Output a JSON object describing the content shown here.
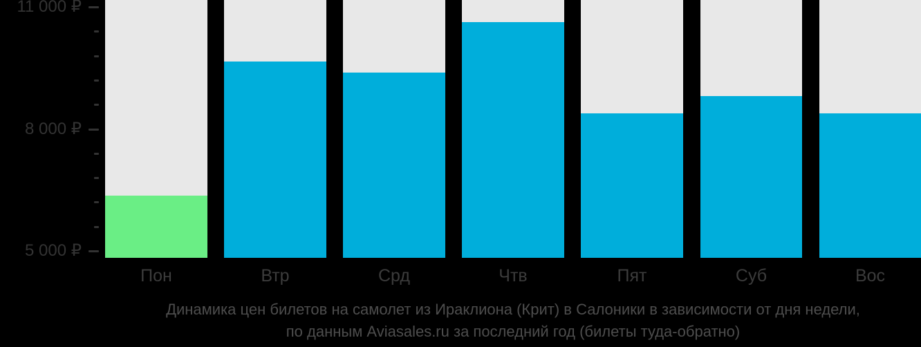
{
  "chart_data": {
    "type": "bar",
    "title": "",
    "categories": [
      "Пон",
      "Втр",
      "Срд",
      "Чтв",
      "Пят",
      "Суб",
      "Вос"
    ],
    "values": [
      6360,
      9660,
      9390,
      10630,
      8380,
      8810,
      8380
    ],
    "bar_colors": [
      "#6AEE85",
      "#00AEDB",
      "#00AEDB",
      "#00AEDB",
      "#00AEDB",
      "#00AEDB",
      "#00AEDB"
    ],
    "ylim": [
      5000,
      11000
    ],
    "yticks": [
      {
        "value": 5000,
        "label": "5 000 ₽"
      },
      {
        "value": 8000,
        "label": "8 000 ₽"
      },
      {
        "value": 11000,
        "label": "11 000 ₽"
      }
    ],
    "minor_tick_step": 600,
    "grid": false,
    "legend": false,
    "xlabel": "",
    "ylabel": "",
    "colors": {
      "background": "#000000",
      "track": "#E8E8E8",
      "bar_default": "#00AEDB",
      "bar_lowest": "#6AEE85",
      "axis_text": "#333333",
      "x_label_text": "#3C3C3C",
      "caption_text": "#4D4D4D"
    }
  },
  "caption": {
    "line1": "Динамика цен билетов на самолет из Ираклиона (Крит) в Салоники в зависимости от дня недели,",
    "line2": "по данным Aviasales.ru за последний год (билеты туда-обратно)"
  }
}
